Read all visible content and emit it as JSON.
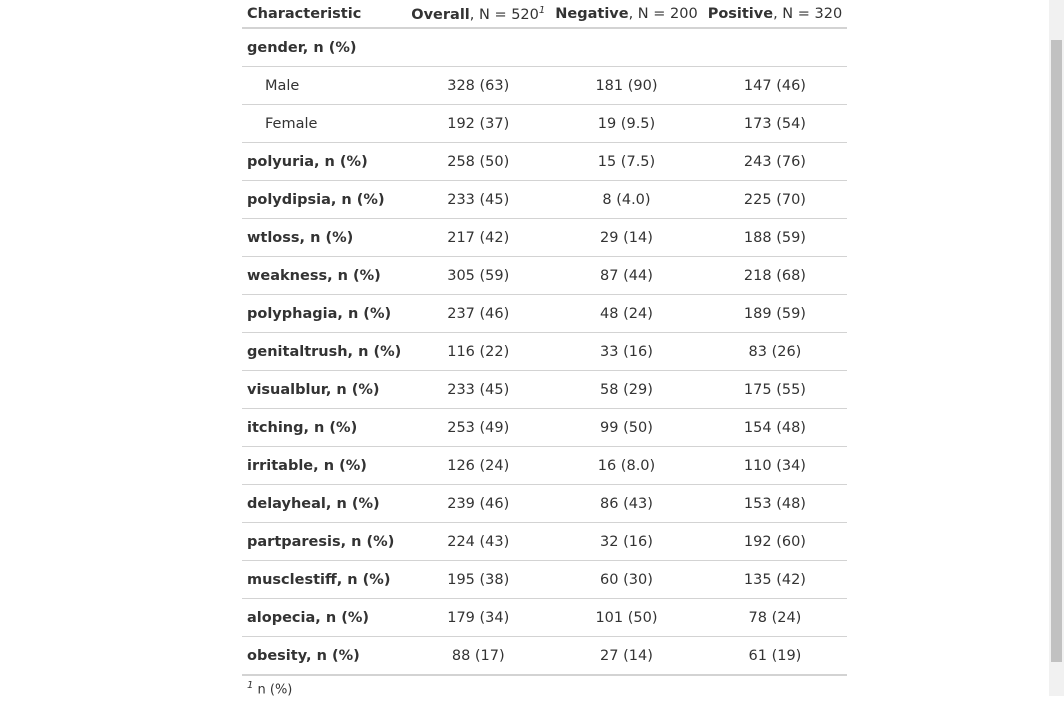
{
  "header": {
    "columns": [
      {
        "bold": "Characteristic"
      },
      {
        "bold": "Overall",
        "rest": ", N = 520",
        "footnote_mark": "1"
      },
      {
        "bold": "Negative",
        "rest": ", N = 200"
      },
      {
        "bold": "Positive",
        "rest": ", N = 320"
      }
    ]
  },
  "table": {
    "variables": [
      {
        "label": "gender, n (%)",
        "levels": [
          {
            "label": "Male",
            "values": [
              "328 (63)",
              "181 (90)",
              "147 (46)"
            ]
          },
          {
            "label": "Female",
            "values": [
              "192 (37)",
              "19 (9.5)",
              "173 (54)"
            ]
          }
        ]
      },
      {
        "label": "polyuria, n (%)",
        "values": [
          "258 (50)",
          "15 (7.5)",
          "243 (76)"
        ]
      },
      {
        "label": "polydipsia, n (%)",
        "values": [
          "233 (45)",
          "8 (4.0)",
          "225 (70)"
        ]
      },
      {
        "label": "wtloss, n (%)",
        "values": [
          "217 (42)",
          "29 (14)",
          "188 (59)"
        ]
      },
      {
        "label": "weakness, n (%)",
        "values": [
          "305 (59)",
          "87 (44)",
          "218 (68)"
        ]
      },
      {
        "label": "polyphagia, n (%)",
        "values": [
          "237 (46)",
          "48 (24)",
          "189 (59)"
        ]
      },
      {
        "label": "genitaltrush, n (%)",
        "values": [
          "116 (22)",
          "33 (16)",
          "83 (26)"
        ]
      },
      {
        "label": "visualblur, n (%)",
        "values": [
          "233 (45)",
          "58 (29)",
          "175 (55)"
        ]
      },
      {
        "label": "itching, n (%)",
        "values": [
          "253 (49)",
          "99 (50)",
          "154 (48)"
        ]
      },
      {
        "label": "irritable, n (%)",
        "values": [
          "126 (24)",
          "16 (8.0)",
          "110 (34)"
        ]
      },
      {
        "label": "delayheal, n (%)",
        "values": [
          "239 (46)",
          "86 (43)",
          "153 (48)"
        ]
      },
      {
        "label": "partparesis, n (%)",
        "values": [
          "224 (43)",
          "32 (16)",
          "192 (60)"
        ]
      },
      {
        "label": "musclestiff, n (%)",
        "values": [
          "195 (38)",
          "60 (30)",
          "135 (42)"
        ]
      },
      {
        "label": "alopecia, n (%)",
        "values": [
          "179 (34)",
          "101 (50)",
          "78 (24)"
        ]
      },
      {
        "label": "obesity, n (%)",
        "values": [
          "88 (17)",
          "27 (14)",
          "61 (19)"
        ]
      }
    ]
  },
  "footnote": {
    "mark": "1",
    "text": "n (%)"
  }
}
